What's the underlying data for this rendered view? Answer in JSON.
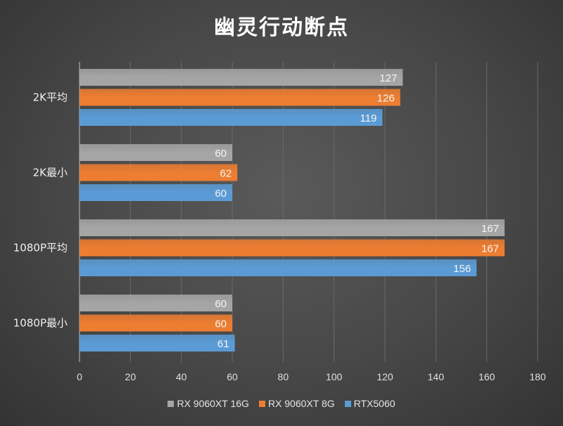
{
  "chart_data": {
    "type": "bar",
    "orientation": "horizontal",
    "title": "幽灵行动断点",
    "categories": [
      "2K平均",
      "2K最小",
      "1080P平均",
      "1080P最小"
    ],
    "series": [
      {
        "name": "RX 9060XT 16G",
        "color": "#a5a5a5",
        "values": [
          127,
          60,
          167,
          60
        ]
      },
      {
        "name": "RX 9060XT 8G",
        "color": "#ed7d31",
        "values": [
          126,
          62,
          167,
          60
        ]
      },
      {
        "name": "RTX5060",
        "color": "#5b9bd5",
        "values": [
          119,
          60,
          156,
          61
        ]
      }
    ],
    "xlim": [
      0,
      180
    ],
    "xticks": [
      0,
      20,
      40,
      60,
      80,
      100,
      120,
      140,
      160,
      180
    ],
    "grid": true,
    "data_labels": true,
    "legend": "bottom"
  }
}
